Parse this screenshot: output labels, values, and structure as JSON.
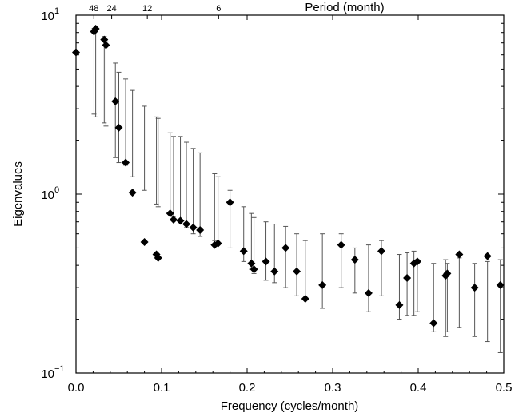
{
  "chart_data": {
    "type": "scatter",
    "xlabel": "Frequency (cycles/month)",
    "ylabel": "Eigenvalues",
    "top_axis_label": "Period (month)",
    "xlim": [
      0,
      0.5
    ],
    "ylim": [
      0.1,
      10
    ],
    "yscale": "log",
    "grid": false,
    "x_ticks": [
      {
        "value": 0.0,
        "label": "0.0"
      },
      {
        "value": 0.1,
        "label": "0.1"
      },
      {
        "value": 0.2,
        "label": "0.2"
      },
      {
        "value": 0.3,
        "label": "0.3"
      },
      {
        "value": 0.4,
        "label": "0.4"
      },
      {
        "value": 0.5,
        "label": "0.5"
      }
    ],
    "y_ticks": [
      {
        "value": 0.1,
        "base": "10",
        "exp": "−1"
      },
      {
        "value": 1,
        "base": "10",
        "exp": "0"
      },
      {
        "value": 10,
        "base": "10",
        "exp": "1"
      }
    ],
    "top_ticks": [
      {
        "period": 48,
        "label": "48"
      },
      {
        "period": 24,
        "label": "24"
      },
      {
        "period": 12,
        "label": "12"
      },
      {
        "period": 6,
        "label": "6"
      }
    ],
    "points": [
      {
        "x": 0.0,
        "y": 6.2,
        "lo": null,
        "hi": null
      },
      {
        "x": 0.021,
        "y": 8.1,
        "lo": 2.8,
        "hi": 8.4
      },
      {
        "x": 0.023,
        "y": 8.4,
        "lo": 2.7,
        "hi": 8.7
      },
      {
        "x": 0.033,
        "y": 7.3,
        "lo": 2.5,
        "hi": 7.6
      },
      {
        "x": 0.035,
        "y": 6.8,
        "lo": 2.4,
        "hi": 7.1
      },
      {
        "x": 0.046,
        "y": 3.3,
        "lo": 1.6,
        "hi": 5.4
      },
      {
        "x": 0.05,
        "y": 2.35,
        "lo": 1.5,
        "hi": 4.8
      },
      {
        "x": 0.058,
        "y": 1.5,
        "lo": 1.45,
        "hi": 4.4
      },
      {
        "x": 0.066,
        "y": 1.02,
        "lo": 1.25,
        "hi": 3.8
      },
      {
        "x": 0.08,
        "y": 0.54,
        "lo": 1.05,
        "hi": 3.1
      },
      {
        "x": 0.094,
        "y": 0.46,
        "lo": 0.88,
        "hi": 2.7
      },
      {
        "x": 0.096,
        "y": 0.44,
        "lo": 0.85,
        "hi": 2.65
      },
      {
        "x": 0.11,
        "y": 0.78,
        "lo": 0.78,
        "hi": 2.2
      },
      {
        "x": 0.114,
        "y": 0.72,
        "lo": 0.75,
        "hi": 2.1
      },
      {
        "x": 0.122,
        "y": 0.71,
        "lo": 0.7,
        "hi": 2.1
      },
      {
        "x": 0.129,
        "y": 0.68,
        "lo": 0.65,
        "hi": 1.95
      },
      {
        "x": 0.137,
        "y": 0.65,
        "lo": 0.6,
        "hi": 1.8
      },
      {
        "x": 0.145,
        "y": 0.63,
        "lo": 0.58,
        "hi": 1.7
      },
      {
        "x": 0.162,
        "y": 0.52,
        "lo": 0.55,
        "hi": 1.3
      },
      {
        "x": 0.166,
        "y": 0.53,
        "lo": 0.52,
        "hi": 1.25
      },
      {
        "x": 0.18,
        "y": 0.9,
        "lo": 0.5,
        "hi": 1.05
      },
      {
        "x": 0.196,
        "y": 0.48,
        "lo": 0.42,
        "hi": 0.85
      },
      {
        "x": 0.205,
        "y": 0.41,
        "lo": 0.38,
        "hi": 0.78
      },
      {
        "x": 0.208,
        "y": 0.38,
        "lo": 0.36,
        "hi": 0.74
      },
      {
        "x": 0.222,
        "y": 0.42,
        "lo": 0.33,
        "hi": 0.7
      },
      {
        "x": 0.232,
        "y": 0.37,
        "lo": 0.32,
        "hi": 0.68
      },
      {
        "x": 0.245,
        "y": 0.5,
        "lo": 0.3,
        "hi": 0.66
      },
      {
        "x": 0.258,
        "y": 0.37,
        "lo": 0.27,
        "hi": 0.6
      },
      {
        "x": 0.268,
        "y": 0.26,
        "lo": 0.26,
        "hi": 0.55
      },
      {
        "x": 0.288,
        "y": 0.31,
        "lo": 0.23,
        "hi": 0.6
      },
      {
        "x": 0.31,
        "y": 0.52,
        "lo": 0.3,
        "hi": 0.6
      },
      {
        "x": 0.326,
        "y": 0.43,
        "lo": 0.28,
        "hi": 0.5
      },
      {
        "x": 0.342,
        "y": 0.28,
        "lo": 0.22,
        "hi": 0.52
      },
      {
        "x": 0.357,
        "y": 0.48,
        "lo": 0.27,
        "hi": 0.55
      },
      {
        "x": 0.378,
        "y": 0.24,
        "lo": 0.2,
        "hi": 0.46
      },
      {
        "x": 0.387,
        "y": 0.34,
        "lo": 0.21,
        "hi": 0.47
      },
      {
        "x": 0.395,
        "y": 0.41,
        "lo": 0.21,
        "hi": 0.48
      },
      {
        "x": 0.399,
        "y": 0.42,
        "lo": 0.22,
        "hi": 0.43
      },
      {
        "x": 0.418,
        "y": 0.19,
        "lo": 0.17,
        "hi": 0.41
      },
      {
        "x": 0.432,
        "y": 0.35,
        "lo": 0.16,
        "hi": 0.43
      },
      {
        "x": 0.434,
        "y": 0.36,
        "lo": 0.17,
        "hi": 0.41
      },
      {
        "x": 0.448,
        "y": 0.46,
        "lo": 0.18,
        "hi": 0.44
      },
      {
        "x": 0.466,
        "y": 0.3,
        "lo": 0.16,
        "hi": 0.41
      },
      {
        "x": 0.481,
        "y": 0.45,
        "lo": 0.15,
        "hi": 0.42
      },
      {
        "x": 0.496,
        "y": 0.31,
        "lo": 0.13,
        "hi": 0.43
      }
    ]
  }
}
